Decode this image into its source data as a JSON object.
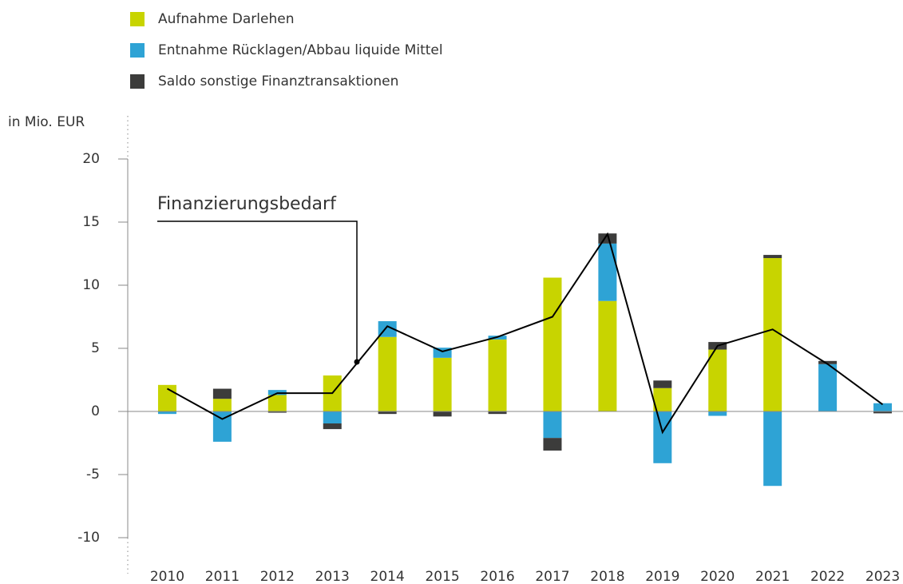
{
  "chart_data": {
    "type": "bar",
    "stacked": true,
    "legend": [
      "Aufnahme Darlehen",
      "Entnahme Rücklagen/Abbau liquide Mittel",
      "Saldo sonstige Finanztransaktionen"
    ],
    "y_label": "in Mio. EUR",
    "annotation": "Finanzierungsbedarf",
    "categories": [
      "2010",
      "2011",
      "2012",
      "2013",
      "2014",
      "2015",
      "2016",
      "2017",
      "2018",
      "2019",
      "2020",
      "2021",
      "2022",
      "2023"
    ],
    "series": [
      {
        "name": "Aufnahme Darlehen",
        "color": "#c8d400",
        "values": [
          2.1,
          1.0,
          1.3,
          2.85,
          5.9,
          4.25,
          5.7,
          10.6,
          8.75,
          1.85,
          4.9,
          12.15,
          0,
          0
        ]
      },
      {
        "name": "Entnahme Rücklagen/Abbau liquide Mittel",
        "color": "#2ea3d5",
        "values": [
          -0.2,
          -2.4,
          0.4,
          -0.95,
          1.25,
          0.8,
          0.3,
          -2.1,
          4.55,
          -4.1,
          -0.35,
          -5.9,
          3.75,
          0.65
        ]
      },
      {
        "name": "Saldo sonstige Finanztransaktionen",
        "color": "#3c3c3b",
        "values": [
          0,
          0.8,
          -0.1,
          -0.45,
          -0.2,
          -0.4,
          -0.2,
          -1.0,
          0.8,
          0.6,
          0.6,
          0.25,
          0.25,
          -0.15
        ]
      },
      {
        "name": "Finanzierungsbedarf",
        "type": "line",
        "color": "#000000",
        "values": [
          1.8,
          -0.6,
          1.45,
          1.45,
          6.75,
          4.75,
          5.9,
          7.5,
          14.05,
          -1.65,
          5.2,
          6.5,
          3.75,
          0.55
        ]
      }
    ],
    "ylim": [
      -10,
      20
    ],
    "yticks": [
      -10,
      -5,
      0,
      5,
      10,
      15,
      20
    ]
  }
}
